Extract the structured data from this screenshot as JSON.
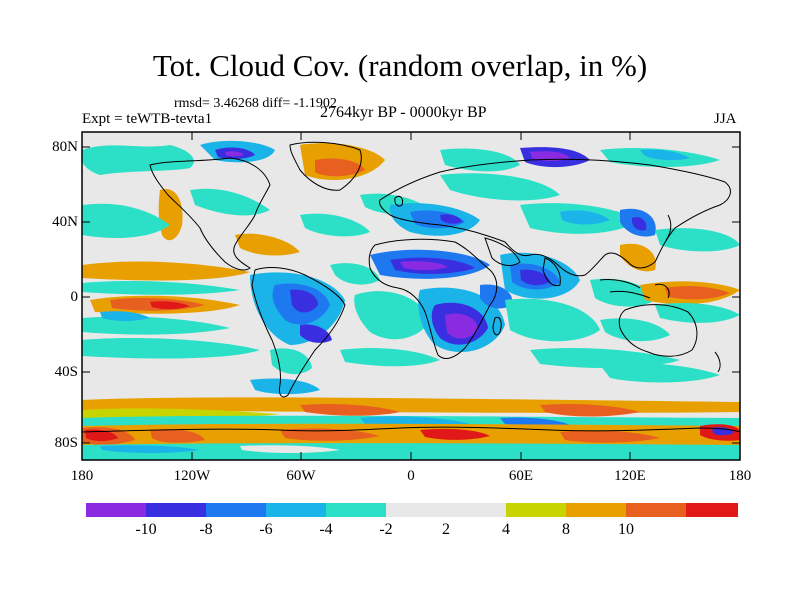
{
  "title": "Tot. Cloud Cov. (random overlap, in %)",
  "stats": "rmsd= 3.46268 diff= -1.1902",
  "experiment": "Expt = teWTB-tevta1",
  "period": "2764kyr BP - 0000kyr BP",
  "season": "JJA",
  "y_ticks": [
    "80N",
    "40N",
    "0",
    "40S",
    "80S"
  ],
  "x_ticks": [
    "180",
    "120W",
    "60W",
    "0",
    "60E",
    "120E",
    "180"
  ],
  "colorbar": {
    "colors": [
      "#8a2be2",
      "#3a2fe0",
      "#1e78f0",
      "#1ab4e8",
      "#2ce0c8",
      "#e8e8e8",
      "#e8e8e8",
      "#c8d400",
      "#e8a000",
      "#e86020",
      "#e01818"
    ],
    "labels": [
      "-10",
      "-8",
      "-6",
      "-4",
      "-2",
      "2",
      "4",
      "8",
      "10"
    ]
  }
}
